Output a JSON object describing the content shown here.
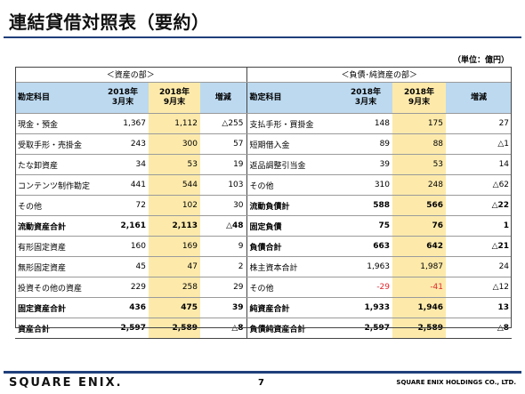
{
  "title": "連結貸借対照表（要約）",
  "unit": "（単位：億円）",
  "sections": {
    "assets": "＜資産の部＞",
    "liabilities": "＜負債･純資産の部＞"
  },
  "headers": {
    "account": "勘定科目",
    "col1": "2018年\n3月末",
    "col2": "2018年\n9月末",
    "change": "増減"
  },
  "rows": [
    {
      "a_name": "現金・預金",
      "a_v1": "1,367",
      "a_v2": "1,112",
      "a_ch": "△255",
      "l_name": "支払手形・買掛金",
      "l_v1": "148",
      "l_v2": "175",
      "l_ch": "27"
    },
    {
      "a_name": "受取手形・売掛金",
      "a_v1": "243",
      "a_v2": "300",
      "a_ch": "57",
      "l_name": "短期借入金",
      "l_v1": "89",
      "l_v2": "88",
      "l_ch": "△1"
    },
    {
      "a_name": "たな卸資産",
      "a_v1": "34",
      "a_v2": "53",
      "a_ch": "19",
      "l_name": "返品調整引当金",
      "l_v1": "39",
      "l_v2": "53",
      "l_ch": "14"
    },
    {
      "a_name": "コンテンツ制作勘定",
      "a_v1": "441",
      "a_v2": "544",
      "a_ch": "103",
      "l_name": "その他",
      "l_v1": "310",
      "l_v2": "248",
      "l_ch": "△62"
    },
    {
      "a_name": "その他",
      "a_v1": "72",
      "a_v2": "102",
      "a_ch": "30",
      "l_name": "流動負債計",
      "l_v1": "588",
      "l_v2": "566",
      "l_ch": "△22"
    },
    {
      "a_name": "流動資産合計",
      "a_v1": "2,161",
      "a_v2": "2,113",
      "a_ch": "△48",
      "l_name": "固定負債",
      "l_v1": "75",
      "l_v2": "76",
      "l_ch": "1"
    },
    {
      "a_name": "有形固定資産",
      "a_v1": "160",
      "a_v2": "169",
      "a_ch": "9",
      "l_name": "負債合計",
      "l_v1": "663",
      "l_v2": "642",
      "l_ch": "△21"
    },
    {
      "a_name": "無形固定資産",
      "a_v1": "45",
      "a_v2": "47",
      "a_ch": "2",
      "l_name": "株主資本合計",
      "l_v1": "1,963",
      "l_v2": "1,987",
      "l_ch": "24"
    },
    {
      "a_name": "投資その他の資産",
      "a_v1": "229",
      "a_v2": "258",
      "a_ch": "29",
      "l_name": "その他",
      "l_v1": "-29",
      "l_v2": "-41",
      "l_ch": "△12"
    },
    {
      "a_name": "固定資産合計",
      "a_v1": "436",
      "a_v2": "475",
      "a_ch": "39",
      "l_name": "純資産合計",
      "l_v1": "1,933",
      "l_v2": "1,946",
      "l_ch": "13"
    },
    {
      "a_name": "資産合計",
      "a_v1": "2,597",
      "a_v2": "2,589",
      "a_ch": "△8",
      "l_name": "負債純資産合計",
      "l_v1": "2,597",
      "l_v2": "2,589",
      "l_ch": "△8"
    }
  ],
  "footer": {
    "logo": "SQUARE ENIX.",
    "page": "7",
    "company": "SQUARE ENIX HOLDINGS CO., LTD."
  },
  "colors": {
    "header_bg": "#bcd9f0",
    "highlight": "#fdeaab",
    "accent": "#1f3f7a",
    "negative": "#e0262b"
  }
}
